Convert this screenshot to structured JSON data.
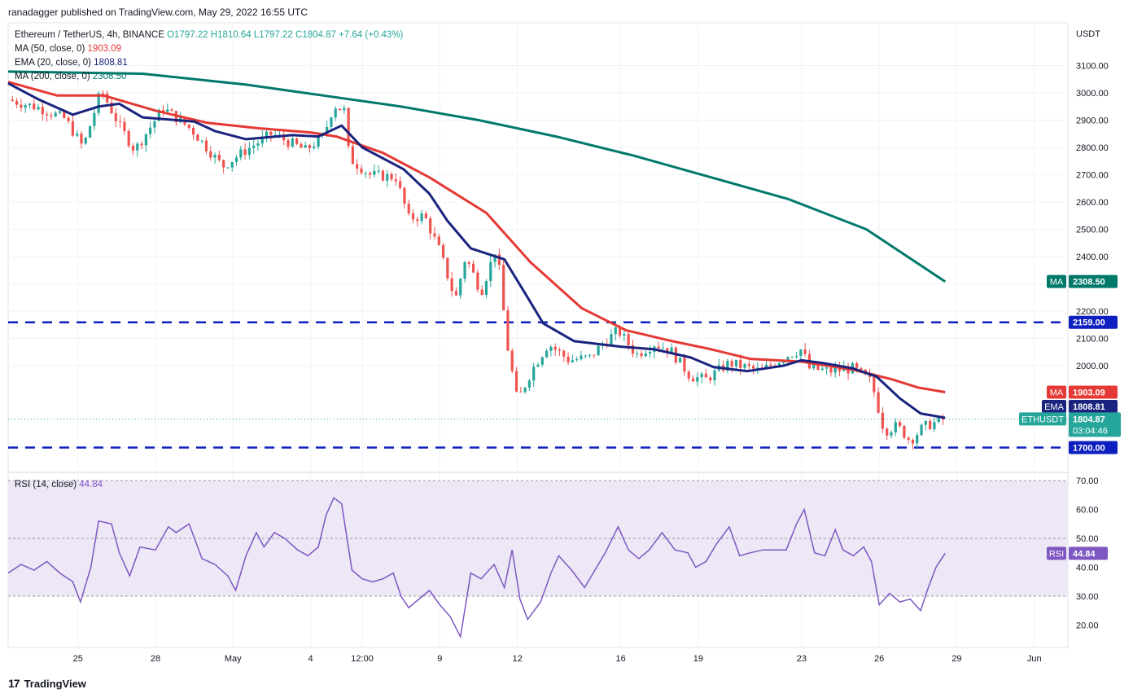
{
  "header": {
    "publisher": "ranadagger published on TradingView.com, May 29, 2022 16:55 UTC",
    "symbol_line": "Ethereum / TetherUS, 4h, BINANCE",
    "ohlc": {
      "o": "O1797.22",
      "h": "H1810.64",
      "l": "L1797.22",
      "c": "C1804.87",
      "chg": "+7.64 (+0.43%)"
    },
    "ind1": {
      "label": "MA (50, close, 0)",
      "value": "1903.09"
    },
    "ind2": {
      "label": "EMA (20, close, 0)",
      "value": "1808.81"
    },
    "ind3": {
      "label": "MA (200, close, 0)",
      "value": "2308.50"
    },
    "rsi_label": "RSI (14, close)",
    "rsi_value": "44.84"
  },
  "footer": {
    "brand": "TradingView",
    "mark": "17"
  },
  "colors": {
    "up": "#26a69a",
    "down": "#ef5350",
    "ema": "#1a237e",
    "ma50": "#e53935",
    "ma200": "#00796b",
    "hline": "#0d1fbf",
    "rsi": "#7e57c2",
    "rsi_band": "#ede7f6",
    "label_hline": "#0d1fbf",
    "label_price": "#26a69a"
  },
  "chart_data": {
    "type": "candlestick",
    "title": "Ethereum / TetherUS, 4h, BINANCE",
    "y_unit": "USDT",
    "ylim": [
      1580,
      3180
    ],
    "y_ticks": [
      1700,
      2000,
      2100,
      2200,
      2300,
      2400,
      2500,
      2600,
      2700,
      2800,
      2900,
      3000,
      3100
    ],
    "y_tick_labels": [
      "",
      "2000.00",
      "2100.00",
      "2200.00",
      "2300.00",
      "2400.00",
      "2500.00",
      "2600.00",
      "2700.00",
      "2800.00",
      "2900.00",
      "3000.00",
      "3100.00"
    ],
    "x_labels": [
      {
        "t": 25,
        "label": "25"
      },
      {
        "t": 28,
        "label": "28"
      },
      {
        "t": 31,
        "label": "May"
      },
      {
        "t": 34,
        "label": "4"
      },
      {
        "t": 36,
        "label": "12:00"
      },
      {
        "t": 39,
        "label": "9"
      },
      {
        "t": 42,
        "label": "12"
      },
      {
        "t": 46,
        "label": "16"
      },
      {
        "t": 49,
        "label": "19"
      },
      {
        "t": 53,
        "label": "23"
      },
      {
        "t": 56,
        "label": "26"
      },
      {
        "t": 59,
        "label": "29"
      },
      {
        "t": 62,
        "label": "Jun"
      }
    ],
    "x_range": [
      22.3,
      63.3
    ],
    "candle_days": [
      22.3,
      58.55
    ],
    "price_anchors": [
      [
        22.3,
        2975
      ],
      [
        23.5,
        2945
      ],
      [
        24.5,
        2905
      ],
      [
        25.2,
        2800
      ],
      [
        25.9,
        3010
      ],
      [
        26.6,
        2880
      ],
      [
        27.2,
        2790
      ],
      [
        28.3,
        2945
      ],
      [
        29.4,
        2865
      ],
      [
        30.6,
        2730
      ],
      [
        31.5,
        2790
      ],
      [
        32.5,
        2850
      ],
      [
        33.8,
        2790
      ],
      [
        34.5,
        2840
      ],
      [
        34.9,
        2955
      ],
      [
        35.3,
        2935
      ],
      [
        35.5,
        2760
      ],
      [
        36.3,
        2700
      ],
      [
        37.3,
        2690
      ],
      [
        37.8,
        2540
      ],
      [
        38.4,
        2550
      ],
      [
        39.0,
        2420
      ],
      [
        39.6,
        2240
      ],
      [
        40.0,
        2400
      ],
      [
        40.6,
        2270
      ],
      [
        41.2,
        2440
      ],
      [
        41.6,
        2080
      ],
      [
        42.0,
        1870
      ],
      [
        42.6,
        1990
      ],
      [
        43.2,
        2080
      ],
      [
        44.0,
        2020
      ],
      [
        44.8,
        2030
      ],
      [
        45.3,
        2080
      ],
      [
        45.9,
        2130
      ],
      [
        46.6,
        2040
      ],
      [
        47.3,
        2080
      ],
      [
        47.9,
        2060
      ],
      [
        48.7,
        1960
      ],
      [
        49.3,
        1950
      ],
      [
        50.2,
        2010
      ],
      [
        51.4,
        1980
      ],
      [
        52.5,
        2040
      ],
      [
        53.0,
        2060
      ],
      [
        53.3,
        1990
      ],
      [
        54.1,
        1980
      ],
      [
        55.0,
        1990
      ],
      [
        55.7,
        1940
      ],
      [
        56.2,
        1760
      ],
      [
        56.7,
        1780
      ],
      [
        57.2,
        1725
      ],
      [
        57.7,
        1775
      ],
      [
        58.55,
        1805
      ]
    ],
    "series": [
      {
        "name": "MA (200, close, 0)",
        "type": "line",
        "value_label": "2308.50",
        "points": [
          [
            22.3,
            3078
          ],
          [
            27.5,
            3070
          ],
          [
            31.5,
            3030
          ],
          [
            34.5,
            2990
          ],
          [
            37.5,
            2950
          ],
          [
            40.5,
            2900
          ],
          [
            43.5,
            2840
          ],
          [
            46.5,
            2770
          ],
          [
            49.5,
            2690
          ],
          [
            52.5,
            2610
          ],
          [
            55.5,
            2500
          ],
          [
            58.55,
            2308.5
          ]
        ]
      },
      {
        "name": "MA (50, close, 0)",
        "type": "line",
        "value_label": "1903.09",
        "points": [
          [
            22.3,
            3040
          ],
          [
            24.2,
            2990
          ],
          [
            26.0,
            2990
          ],
          [
            28.0,
            2935
          ],
          [
            30.0,
            2890
          ],
          [
            32.0,
            2870
          ],
          [
            34.0,
            2855
          ],
          [
            35.0,
            2840
          ],
          [
            36.8,
            2780
          ],
          [
            38.6,
            2690
          ],
          [
            40.8,
            2560
          ],
          [
            42.5,
            2380
          ],
          [
            44.5,
            2210
          ],
          [
            46.2,
            2130
          ],
          [
            48.0,
            2090
          ],
          [
            49.5,
            2060
          ],
          [
            51.0,
            2025
          ],
          [
            53.0,
            2015
          ],
          [
            55.0,
            1985
          ],
          [
            56.5,
            1950
          ],
          [
            57.5,
            1920
          ],
          [
            58.55,
            1903.09
          ]
        ]
      },
      {
        "name": "EMA (20, close, 0)",
        "type": "line",
        "value_label": "1808.81",
        "points": [
          [
            22.3,
            3035
          ],
          [
            23.5,
            2975
          ],
          [
            24.8,
            2920
          ],
          [
            25.8,
            2950
          ],
          [
            26.6,
            2960
          ],
          [
            27.5,
            2910
          ],
          [
            29.5,
            2895
          ],
          [
            30.3,
            2860
          ],
          [
            31.5,
            2830
          ],
          [
            33.3,
            2845
          ],
          [
            34.3,
            2840
          ],
          [
            35.2,
            2880
          ],
          [
            36.0,
            2800
          ],
          [
            37.6,
            2720
          ],
          [
            38.6,
            2630
          ],
          [
            39.3,
            2530
          ],
          [
            40.2,
            2430
          ],
          [
            41.5,
            2390
          ],
          [
            42.4,
            2250
          ],
          [
            43.0,
            2155
          ],
          [
            44.2,
            2090
          ],
          [
            46.0,
            2070
          ],
          [
            47.3,
            2060
          ],
          [
            48.7,
            2030
          ],
          [
            49.6,
            1995
          ],
          [
            50.9,
            1980
          ],
          [
            52.3,
            2000
          ],
          [
            53.0,
            2020
          ],
          [
            53.8,
            2010
          ],
          [
            55.0,
            1990
          ],
          [
            55.9,
            1960
          ],
          [
            56.8,
            1880
          ],
          [
            57.6,
            1825
          ],
          [
            58.55,
            1808.81
          ]
        ]
      }
    ],
    "hlines": [
      {
        "value": 2159,
        "label": "2159.00",
        "style": "dashed"
      },
      {
        "value": 1700,
        "label": "1700.00",
        "style": "dashed"
      }
    ],
    "last_price": {
      "value": 1804.87,
      "label": "ETHUSDT",
      "value_label": "1804.87",
      "countdown": "03:04:46"
    },
    "rsi": {
      "name": "RSI (14, close)",
      "value_label": "44.84",
      "ylim": [
        13,
        73
      ],
      "bands": [
        30,
        70
      ],
      "mid": 50,
      "ticks": [
        20,
        30,
        40,
        50,
        60,
        70
      ],
      "tick_labels": [
        "20.00",
        "30.00",
        "40.00",
        "50.00",
        "60.00",
        "70.00"
      ],
      "points": [
        [
          22.3,
          38
        ],
        [
          22.8,
          41
        ],
        [
          23.3,
          39
        ],
        [
          23.8,
          42
        ],
        [
          24.3,
          38
        ],
        [
          24.8,
          35
        ],
        [
          25.1,
          28
        ],
        [
          25.5,
          40
        ],
        [
          25.8,
          56
        ],
        [
          26.3,
          55
        ],
        [
          26.6,
          45
        ],
        [
          27.0,
          37
        ],
        [
          27.4,
          47
        ],
        [
          28.0,
          46
        ],
        [
          28.5,
          54
        ],
        [
          28.8,
          52
        ],
        [
          29.3,
          55
        ],
        [
          29.8,
          43
        ],
        [
          30.3,
          41
        ],
        [
          30.8,
          37
        ],
        [
          31.1,
          32
        ],
        [
          31.5,
          44
        ],
        [
          31.9,
          52
        ],
        [
          32.2,
          47
        ],
        [
          32.6,
          52
        ],
        [
          33.0,
          50
        ],
        [
          33.5,
          46
        ],
        [
          33.9,
          44
        ],
        [
          34.3,
          47
        ],
        [
          34.6,
          58
        ],
        [
          34.9,
          64
        ],
        [
          35.2,
          62
        ],
        [
          35.6,
          39
        ],
        [
          36.0,
          36
        ],
        [
          36.4,
          35
        ],
        [
          36.8,
          36
        ],
        [
          37.2,
          38
        ],
        [
          37.5,
          30
        ],
        [
          37.8,
          26
        ],
        [
          38.2,
          29
        ],
        [
          38.6,
          32
        ],
        [
          39.0,
          27
        ],
        [
          39.4,
          23
        ],
        [
          39.8,
          16
        ],
        [
          40.2,
          38
        ],
        [
          40.6,
          36
        ],
        [
          41.1,
          41
        ],
        [
          41.5,
          33
        ],
        [
          41.8,
          46
        ],
        [
          42.1,
          29
        ],
        [
          42.4,
          22
        ],
        [
          42.9,
          28
        ],
        [
          43.3,
          38
        ],
        [
          43.6,
          44
        ],
        [
          44.1,
          39
        ],
        [
          44.6,
          33
        ],
        [
          45.0,
          39
        ],
        [
          45.4,
          45
        ],
        [
          45.9,
          54
        ],
        [
          46.3,
          46
        ],
        [
          46.7,
          43
        ],
        [
          47.1,
          46
        ],
        [
          47.6,
          52
        ],
        [
          48.1,
          46
        ],
        [
          48.6,
          45
        ],
        [
          48.9,
          40
        ],
        [
          49.3,
          42
        ],
        [
          49.7,
          48
        ],
        [
          50.2,
          54
        ],
        [
          50.6,
          44
        ],
        [
          51.0,
          45
        ],
        [
          51.5,
          46
        ],
        [
          52.0,
          46
        ],
        [
          52.4,
          46
        ],
        [
          52.8,
          55
        ],
        [
          53.1,
          60
        ],
        [
          53.5,
          45
        ],
        [
          53.9,
          44
        ],
        [
          54.3,
          53
        ],
        [
          54.6,
          46
        ],
        [
          55.0,
          44
        ],
        [
          55.4,
          47
        ],
        [
          55.7,
          42
        ],
        [
          56.0,
          27
        ],
        [
          56.4,
          31
        ],
        [
          56.8,
          28
        ],
        [
          57.2,
          29
        ],
        [
          57.6,
          25
        ],
        [
          57.9,
          33
        ],
        [
          58.2,
          40
        ],
        [
          58.55,
          44.84
        ]
      ]
    }
  }
}
